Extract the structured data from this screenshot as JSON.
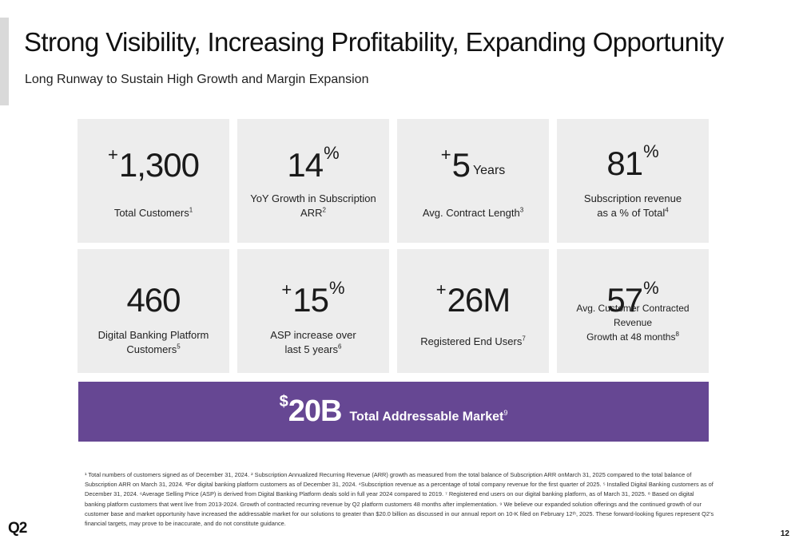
{
  "header": {
    "title": "Strong Visibility, Increasing Profitability, Expanding Opportunity",
    "subtitle": "Long Runway to Sustain High Growth and Margin Expansion"
  },
  "cards": [
    {
      "plus": "+",
      "number": "1,300",
      "pct": "",
      "unit": "",
      "label_lines": [
        "Total Customers"
      ],
      "footnote": "1"
    },
    {
      "plus": "",
      "number": "14",
      "pct": "%",
      "unit": "",
      "label_lines": [
        "YoY Growth in Subscription ARR"
      ],
      "footnote": "2"
    },
    {
      "plus": "+",
      "number": "5",
      "pct": "",
      "unit": "Years",
      "label_lines": [
        "Avg. Contract Length"
      ],
      "footnote": "3"
    },
    {
      "plus": "",
      "number": "81",
      "pct": "%",
      "unit": "",
      "label_lines": [
        "Subscription revenue",
        "as a % of Total"
      ],
      "footnote": "4"
    },
    {
      "plus": "",
      "number": "460",
      "pct": "",
      "unit": "",
      "label_lines": [
        "Digital Banking Platform",
        "Customers"
      ],
      "footnote": "5"
    },
    {
      "plus": "+",
      "number": "15",
      "pct": "%",
      "unit": "",
      "label_lines": [
        "ASP increase over",
        "last 5 years"
      ],
      "footnote": "6"
    },
    {
      "plus": "+",
      "number": "26M",
      "pct": "",
      "unit": "",
      "label_lines": [
        "Registered End Users"
      ],
      "footnote": "7"
    },
    {
      "plus": "",
      "number": "57",
      "pct": "%",
      "unit": "",
      "label_lines": [
        "Avg. Customer Contracted Revenue",
        "Growth at 48 months"
      ],
      "footnote": "8"
    }
  ],
  "tam": {
    "dollar": "$",
    "amount": "20B",
    "label": "Total Addressable Market",
    "footnote": "9"
  },
  "footnotes_text": "¹ Total numbers of customers signed as of December 31, 2024. ² Subscription Annualized Recurring Revenue (ARR) growth as measured from the total balance of Subscription ARR onMarch 31, 2025 compared to the total balance of Subscription ARR on March 31, 2024. ³For digital banking platform customers as of December 31, 2024. ⁴Subscription revenue as a percentage of total company revenue for the first quarter of 2025. ⁵ Installed Digital Banking customers as of December 31, 2024. ⁶Average Selling Price (ASP) is derived from Digital Banking Platform deals sold in full year 2024 compared to 2019. ⁷ Registered end users on our digital banking platform, as of March 31, 2025. ⁸ Based on digital banking platform customers that went live from 2013-2024. Growth of contracted recurring revenue by Q2 platform customers 48 months after implementation. ⁹ We believe our expanded solution offerings and the continued growth of our customer base and market opportunity have increased the addressable market for our solutions to greater than $20.0 billion as discussed in our annual report on 10-K filed on February 12ᵗʰ, 2025. These forward-looking figures represent Q2’s financial targets, may prove to be inaccurate, and do not constitute guidance.",
  "logo_text": "Q2",
  "page_number": "12"
}
